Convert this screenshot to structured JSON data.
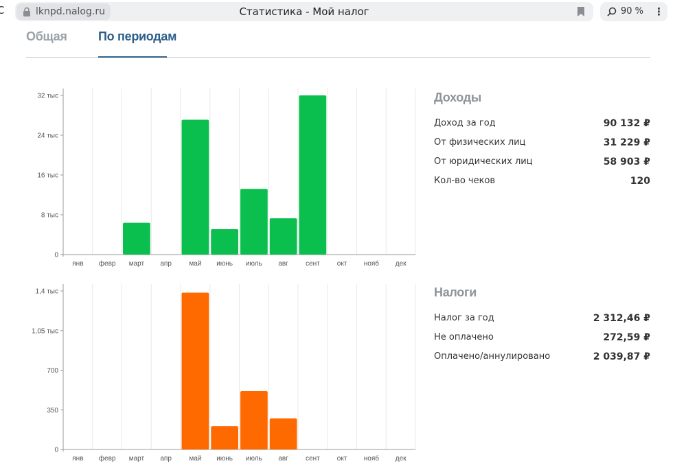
{
  "browser": {
    "url": "lknpd.nalog.ru",
    "title": "Статистика - Мой налог",
    "zoom": "90 %"
  },
  "tabs": [
    {
      "label": "Общая",
      "active": false
    },
    {
      "label": "По периодам",
      "active": true
    }
  ],
  "colors": {
    "income": "#0bbf4e",
    "tax": "#ff6a00",
    "accent": "#2c5f8a"
  },
  "chart_data": [
    {
      "type": "bar",
      "title": "Доходы",
      "categories": [
        "янв",
        "февр",
        "март",
        "апр",
        "май",
        "июнь",
        "июль",
        "авг",
        "сент",
        "окт",
        "нояб",
        "дек"
      ],
      "values": [
        0,
        0,
        6400,
        0,
        27100,
        5100,
        13200,
        7300,
        32000,
        0,
        0,
        0
      ],
      "ylim": [
        0,
        32000
      ],
      "yticks": [
        0,
        8000,
        16000,
        24000,
        32000
      ],
      "ytick_labels": [
        "0",
        "8 тыс",
        "16 тыс",
        "24 тыс",
        "32 тыс"
      ],
      "xlabel": "",
      "ylabel": "",
      "grid": true
    },
    {
      "type": "bar",
      "title": "Налоги",
      "categories": [
        "янв",
        "февр",
        "март",
        "апр",
        "май",
        "июнь",
        "июль",
        "авг",
        "сент",
        "окт",
        "нояб",
        "дек"
      ],
      "values": [
        0,
        0,
        0,
        0,
        1385,
        205,
        515,
        275,
        0,
        0,
        0,
        0
      ],
      "ylim": [
        0,
        1400
      ],
      "yticks": [
        0,
        350,
        700,
        1050,
        1400
      ],
      "ytick_labels": [
        "0",
        "350",
        "700",
        "1,05 тыс",
        "1,4 тыс"
      ],
      "xlabel": "",
      "ylabel": "",
      "grid": true
    }
  ],
  "income": {
    "title": "Доходы",
    "rows": [
      {
        "label": "Доход за год",
        "value": "90 132 ₽"
      },
      {
        "label": "От физических лиц",
        "value": "31 229 ₽"
      },
      {
        "label": "От юридических лиц",
        "value": "58 903 ₽"
      },
      {
        "label": "Кол-во чеков",
        "value": "120"
      }
    ]
  },
  "taxes": {
    "title": "Налоги",
    "rows": [
      {
        "label": "Налог за год",
        "value": "2 312,46 ₽"
      },
      {
        "label": "Не оплачено",
        "value": "272,59 ₽"
      },
      {
        "label": "Оплачено/аннулировано",
        "value": "2 039,87 ₽"
      }
    ]
  }
}
